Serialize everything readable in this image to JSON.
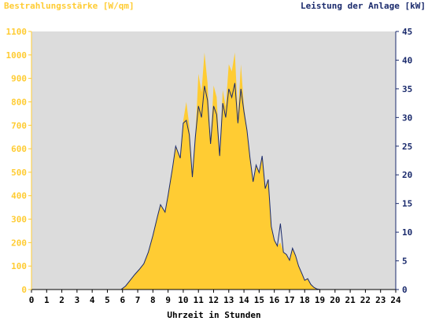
{
  "chart_data": {
    "type": "area",
    "ylabel_left": "Bestrahlungsstärke [W/qm]",
    "ylabel_right": "Leistung der Anlage [kW]",
    "xlabel": "Uhrzeit in Stunden",
    "x_ticks": [
      "0",
      "1",
      "2",
      "3",
      "4",
      "5",
      "6",
      "7",
      "8",
      "9",
      "10",
      "11",
      "12",
      "13",
      "14",
      "15",
      "16",
      "17",
      "18",
      "19",
      "20",
      "21",
      "22",
      "23",
      "24"
    ],
    "y_left_ticks": [
      "0",
      "100",
      "200",
      "300",
      "400",
      "500",
      "600",
      "700",
      "800",
      "900",
      "1000",
      "1100"
    ],
    "y_right_ticks": [
      "0",
      "5",
      "10",
      "15",
      "20",
      "25",
      "30",
      "35",
      "40",
      "45"
    ],
    "xlim": [
      0,
      24
    ],
    "ylim_left": [
      0,
      1100
    ],
    "ylim_right": [
      0,
      45
    ],
    "grid": false,
    "colors": {
      "irradiance_fill": "#ffcc33",
      "power_line": "#1a2a6c",
      "left_axis_text": "#ffcc33",
      "right_axis_text": "#1a2a6c",
      "plot_background": "#dcdcdc"
    },
    "series": [
      {
        "name": "Bestrahlungsstärke",
        "axis": "left",
        "x": [
          0,
          5.9,
          6.2,
          6.5,
          6.8,
          7.1,
          7.4,
          7.7,
          8.0,
          8.3,
          8.5,
          8.8,
          9.0,
          9.3,
          9.5,
          9.8,
          10.0,
          10.2,
          10.4,
          10.6,
          10.8,
          11.0,
          11.2,
          11.4,
          11.6,
          11.8,
          12.0,
          12.2,
          12.4,
          12.6,
          12.8,
          13.0,
          13.2,
          13.4,
          13.6,
          13.8,
          14.0,
          14.2,
          14.4,
          14.6,
          14.8,
          15.0,
          15.2,
          15.4,
          15.6,
          15.8,
          16.0,
          16.2,
          16.4,
          16.6,
          16.8,
          17.0,
          17.2,
          17.4,
          17.6,
          17.8,
          18.0,
          18.2,
          18.4,
          18.6,
          18.8,
          19.0,
          24
        ],
        "y": [
          0,
          0,
          15,
          40,
          65,
          85,
          110,
          160,
          230,
          310,
          360,
          330,
          400,
          520,
          610,
          560,
          720,
          800,
          700,
          480,
          650,
          920,
          840,
          1010,
          880,
          620,
          870,
          820,
          570,
          850,
          780,
          960,
          930,
          1010,
          740,
          960,
          780,
          680,
          560,
          460,
          530,
          500,
          570,
          430,
          470,
          270,
          210,
          185,
          200,
          160,
          150,
          125,
          175,
          145,
          100,
          70,
          40,
          48,
          22,
          10,
          3,
          0,
          0
        ]
      },
      {
        "name": "Leistung der Anlage",
        "axis": "right",
        "x": [
          0,
          5.9,
          6.2,
          6.5,
          6.8,
          7.1,
          7.4,
          7.7,
          8.0,
          8.3,
          8.5,
          8.8,
          9.0,
          9.3,
          9.5,
          9.8,
          10.0,
          10.2,
          10.4,
          10.6,
          10.8,
          11.0,
          11.2,
          11.4,
          11.6,
          11.8,
          12.0,
          12.2,
          12.4,
          12.6,
          12.8,
          13.0,
          13.2,
          13.4,
          13.6,
          13.8,
          14.0,
          14.2,
          14.4,
          14.6,
          14.8,
          15.0,
          15.2,
          15.4,
          15.6,
          15.8,
          16.0,
          16.2,
          16.4,
          16.6,
          16.8,
          17.0,
          17.2,
          17.4,
          17.6,
          17.8,
          18.0,
          18.2,
          18.4,
          18.6,
          18.8,
          19.0,
          24
        ],
        "y": [
          0,
          0,
          0.6,
          1.6,
          2.6,
          3.5,
          4.5,
          6.5,
          9.4,
          12.7,
          14.8,
          13.5,
          16.4,
          21.3,
          25.0,
          22.9,
          29.0,
          29.5,
          27.0,
          19.6,
          26.6,
          32.0,
          30.0,
          35.5,
          33.0,
          25.4,
          32.0,
          30.5,
          23.3,
          32.5,
          30.0,
          35.0,
          33.5,
          36.0,
          29.0,
          35.0,
          31.0,
          27.8,
          22.9,
          18.8,
          21.7,
          20.4,
          23.3,
          17.6,
          19.2,
          11.0,
          8.6,
          7.6,
          11.5,
          6.5,
          6.1,
          5.1,
          7.2,
          5.9,
          4.1,
          2.9,
          1.6,
          1.9,
          0.9,
          0.4,
          0.1,
          0,
          0
        ]
      }
    ]
  }
}
